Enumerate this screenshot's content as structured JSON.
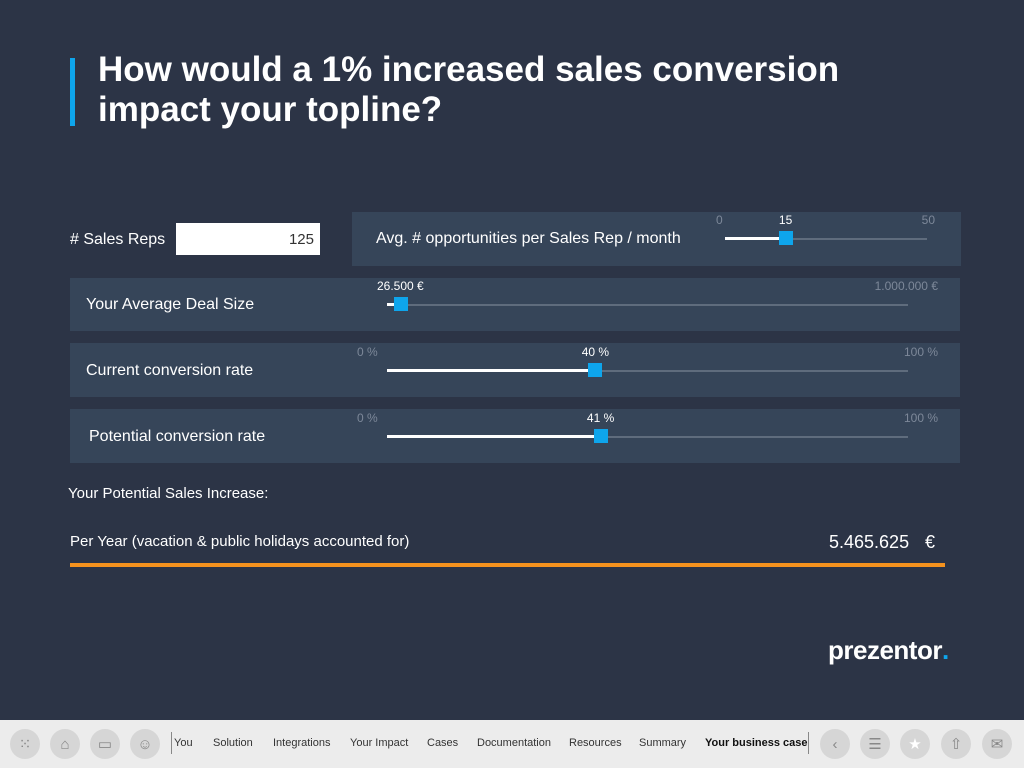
{
  "title": "How would a 1% increased sales conversion impact your topline?",
  "sales_reps": {
    "label": "# Sales Reps",
    "value": "125"
  },
  "opportunities": {
    "label": "Avg. # opportunities per Sales Rep / month",
    "min": 0,
    "max": 50,
    "value": 15,
    "min_label": "0",
    "max_label": "50",
    "value_label": "15"
  },
  "deal_size": {
    "label": "Your Average Deal Size",
    "min": 0,
    "max": 1000000,
    "value": 26500,
    "value_label": "26.500 €",
    "max_label": "1.000.000 €"
  },
  "current_rate": {
    "label": "Current conversion rate",
    "min": 0,
    "max": 100,
    "value": 40,
    "min_label": "0 %",
    "max_label": "100 %",
    "value_label": "40 %"
  },
  "potential_rate": {
    "label": "Potential conversion rate",
    "min": 0,
    "max": 100,
    "value": 41,
    "min_label": "0 %",
    "max_label": "100 %",
    "value_label": "41 %"
  },
  "result": {
    "heading": "Your Potential Sales Increase:",
    "row_label": "Per Year (vacation & public holidays accounted for)",
    "value": "5.465.625",
    "currency": "€"
  },
  "logo": {
    "text": "prezentor",
    "dot": "."
  },
  "colors": {
    "accent": "#0ea5ec",
    "highlight": "#f5921e",
    "background": "#2c3446"
  },
  "bottom_nav": {
    "icons": [
      "apps-grid-icon",
      "home-icon",
      "folder-icon",
      "people-icon"
    ],
    "items": [
      "You",
      "Solution",
      "Integrations",
      "Your Impact",
      "Cases",
      "Documentation",
      "Resources",
      "Summary",
      "Your business case"
    ],
    "active": "Your business case",
    "right_icons": [
      "back-icon",
      "outline-icon",
      "star-icon",
      "share-icon",
      "mail-icon"
    ]
  }
}
